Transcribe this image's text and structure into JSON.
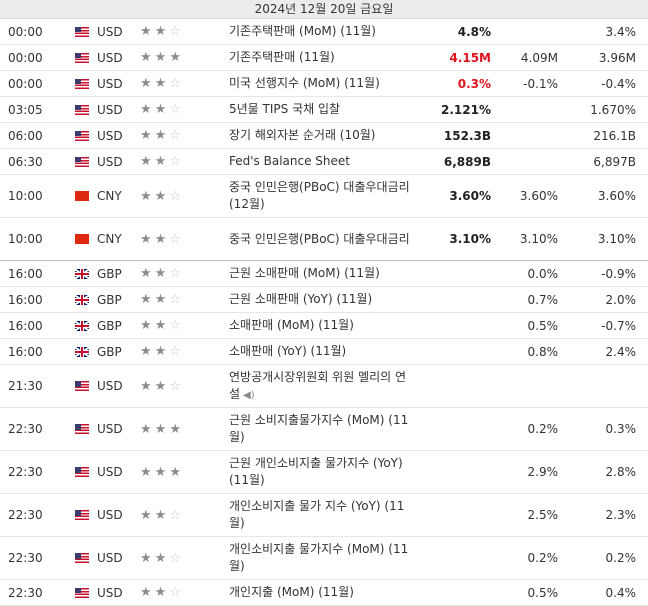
{
  "date_header": "2024년 12월 20일 금요일",
  "rows": [
    {
      "time": "00:00",
      "flag": "us",
      "currency": "USD",
      "stars": [
        1,
        1,
        0
      ],
      "event": "기존주택판매 (MoM) (11월)",
      "actual": "4.8%",
      "actual_red": false,
      "forecast": "",
      "previous": "3.4%",
      "h": "h1"
    },
    {
      "time": "00:00",
      "flag": "us",
      "currency": "USD",
      "stars": [
        1,
        1,
        1
      ],
      "event": "기존주택판매 (11월)",
      "actual": "4.15M",
      "actual_red": true,
      "forecast": "4.09M",
      "previous": "3.96M",
      "h": "h1"
    },
    {
      "time": "00:00",
      "flag": "us",
      "currency": "USD",
      "stars": [
        1,
        1,
        0
      ],
      "event": "미국 선행지수 (MoM) (11월)",
      "actual": "0.3%",
      "actual_red": true,
      "forecast": "-0.1%",
      "previous": "-0.4%",
      "h": "h1"
    },
    {
      "time": "03:05",
      "flag": "us",
      "currency": "USD",
      "stars": [
        1,
        1,
        0
      ],
      "event": "5년물 TIPS 국채 입찰",
      "actual": "2.121%",
      "actual_red": false,
      "forecast": "",
      "previous": "1.670%",
      "h": "h1"
    },
    {
      "time": "06:00",
      "flag": "us",
      "currency": "USD",
      "stars": [
        1,
        1,
        0
      ],
      "event": "장기 해외자본 순거래 (10월)",
      "actual": "152.3B",
      "actual_red": false,
      "forecast": "",
      "previous": "216.1B",
      "h": "h1"
    },
    {
      "time": "06:30",
      "flag": "us",
      "currency": "USD",
      "stars": [
        1,
        1,
        0
      ],
      "event": "Fed's Balance Sheet",
      "actual": "6,889B",
      "actual_red": false,
      "forecast": "",
      "previous": "6,897B",
      "h": "h1"
    },
    {
      "time": "10:00",
      "flag": "cn",
      "currency": "CNY",
      "stars": [
        1,
        1,
        0
      ],
      "event": "중국 인민은행(PBoC) 대출우대금리 (12월)",
      "actual": "3.60%",
      "actual_red": false,
      "forecast": "3.60%",
      "previous": "3.60%",
      "h": "h2"
    },
    {
      "time": "10:00",
      "flag": "cn",
      "currency": "CNY",
      "stars": [
        1,
        1,
        0
      ],
      "event": "중국 인민은행(PBoC) 대출우대금리",
      "actual": "3.10%",
      "actual_red": false,
      "forecast": "3.10%",
      "previous": "3.10%",
      "h": "h2",
      "sep": true
    },
    {
      "time": "16:00",
      "flag": "gb",
      "currency": "GBP",
      "stars": [
        1,
        1,
        0
      ],
      "event": "근원 소매판매 (MoM) (11월)",
      "actual": "",
      "actual_red": false,
      "forecast": "0.0%",
      "previous": "-0.9%",
      "h": "h1"
    },
    {
      "time": "16:00",
      "flag": "gb",
      "currency": "GBP",
      "stars": [
        1,
        1,
        0
      ],
      "event": "근원 소매판매 (YoY) (11월)",
      "actual": "",
      "actual_red": false,
      "forecast": "0.7%",
      "previous": "2.0%",
      "h": "h1"
    },
    {
      "time": "16:00",
      "flag": "gb",
      "currency": "GBP",
      "stars": [
        1,
        1,
        0
      ],
      "event": "소매판매 (MoM) (11월)",
      "actual": "",
      "actual_red": false,
      "forecast": "0.5%",
      "previous": "-0.7%",
      "h": "h1"
    },
    {
      "time": "16:00",
      "flag": "gb",
      "currency": "GBP",
      "stars": [
        1,
        1,
        0
      ],
      "event": "소매판매 (YoY) (11월)",
      "actual": "",
      "actual_red": false,
      "forecast": "0.8%",
      "previous": "2.4%",
      "h": "h1"
    },
    {
      "time": "21:30",
      "flag": "us",
      "currency": "USD",
      "stars": [
        1,
        1,
        0
      ],
      "event": "연방공개시장위원회 위원 멜리의 연설",
      "speaker": true,
      "actual": "",
      "actual_red": false,
      "forecast": "",
      "previous": "",
      "h": "h2"
    },
    {
      "time": "22:30",
      "flag": "us",
      "currency": "USD",
      "stars": [
        1,
        1,
        1
      ],
      "event": "근원 소비지출물가지수 (MoM) (11월)",
      "actual": "",
      "actual_red": false,
      "forecast": "0.2%",
      "previous": "0.3%",
      "h": "h2"
    },
    {
      "time": "22:30",
      "flag": "us",
      "currency": "USD",
      "stars": [
        1,
        1,
        1
      ],
      "event": "근원 개인소비지출 물가지수 (YoY) (11월)",
      "actual": "",
      "actual_red": false,
      "forecast": "2.9%",
      "previous": "2.8%",
      "h": "h2"
    },
    {
      "time": "22:30",
      "flag": "us",
      "currency": "USD",
      "stars": [
        1,
        1,
        0
      ],
      "event": "개인소비지출 물가 지수 (YoY) (11월)",
      "actual": "",
      "actual_red": false,
      "forecast": "2.5%",
      "previous": "2.3%",
      "h": "h2"
    },
    {
      "time": "22:30",
      "flag": "us",
      "currency": "USD",
      "stars": [
        1,
        1,
        0
      ],
      "event": "개인소비지출 물가지수 (MoM) (11월)",
      "actual": "",
      "actual_red": false,
      "forecast": "0.2%",
      "previous": "0.2%",
      "h": "h2"
    },
    {
      "time": "22:30",
      "flag": "us",
      "currency": "USD",
      "stars": [
        1,
        1,
        0
      ],
      "event": "개인지출 (MoM) (11월)",
      "actual": "",
      "actual_red": false,
      "forecast": "0.5%",
      "previous": "0.4%",
      "h": "h3"
    }
  ]
}
